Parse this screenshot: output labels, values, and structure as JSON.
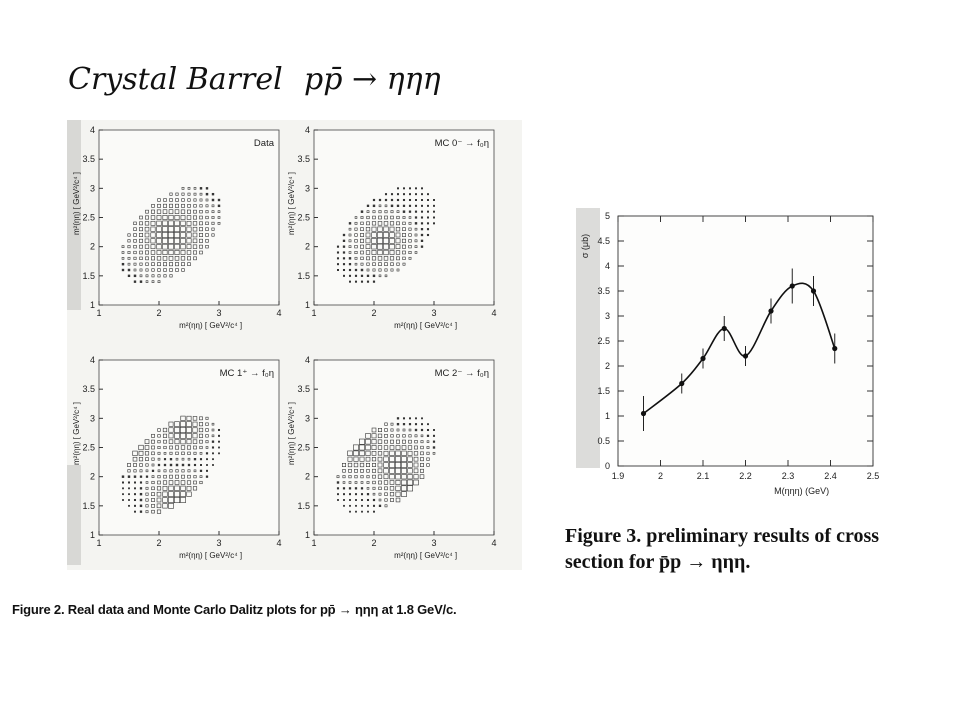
{
  "header": {
    "handwritten_title": "Crystal Barrel",
    "handwritten_reaction": "pp̄ → ηηη"
  },
  "figure2": {
    "panels": [
      {
        "label": "Data",
        "ylabel": "m²(ηη) [ GeV²/c⁴ ]",
        "xlabel": "m²(ηη) [ GeV²/c⁴ ]"
      },
      {
        "label": "MC 0⁻ → f₀η",
        "ylabel": "m²(ηη) [ GeV²/c⁴ ]",
        "xlabel": "m²(ηη) [ GeV²/c⁴ ]"
      },
      {
        "label": "MC 1⁺ → f₀η",
        "ylabel": "m²(ηη) [ GeV²/c⁴ ]",
        "xlabel": "m²(ηη) [ GeV²/c⁴ ]"
      },
      {
        "label": "MC 2⁻ → f₀η",
        "ylabel": "m²(ηη) [ GeV²/c⁴ ]",
        "xlabel": "m²(ηη) [ GeV²/c⁴ ]"
      }
    ],
    "x_ticks": [
      "1",
      "2",
      "3",
      "4"
    ],
    "y_ticks": [
      "1",
      "1.5",
      "2",
      "2.5",
      "3",
      "3.5",
      "4"
    ],
    "caption": "Figure 2. Real data and Monte Carlo Dalitz plots for pp̄ → ηηη at 1.8 GeV/c."
  },
  "figure3": {
    "caption_line1": "Figure 3.  preliminary results of cross",
    "caption_line2": "section for p̄p → ηηη.",
    "y_ticks": [
      "0",
      "0.5",
      "1",
      "1.5",
      "2",
      "2.5",
      "3",
      "3.5",
      "4",
      "4.5",
      "5"
    ],
    "x_ticks": [
      "1.9",
      "2",
      "2.1",
      "2.2",
      "2.3",
      "2.4",
      "2.5"
    ]
  },
  "chart_data": {
    "type": "scatter",
    "title": "",
    "xlabel": "M(ηηη) (GeV)",
    "ylabel": "σ (μb)",
    "xlim": [
      1.9,
      2.5
    ],
    "ylim": [
      0,
      5
    ],
    "grid": false,
    "series": [
      {
        "x": [
          1.96,
          2.05,
          2.1,
          2.15,
          2.2,
          2.26,
          2.31,
          2.36,
          2.41
        ],
        "y": [
          1.05,
          1.65,
          2.15,
          2.75,
          2.2,
          3.1,
          3.6,
          3.5,
          2.35
        ],
        "yerr": [
          0.35,
          0.2,
          0.2,
          0.25,
          0.2,
          0.25,
          0.35,
          0.3,
          0.3
        ]
      }
    ],
    "fit_curve": "smooth line through points"
  }
}
